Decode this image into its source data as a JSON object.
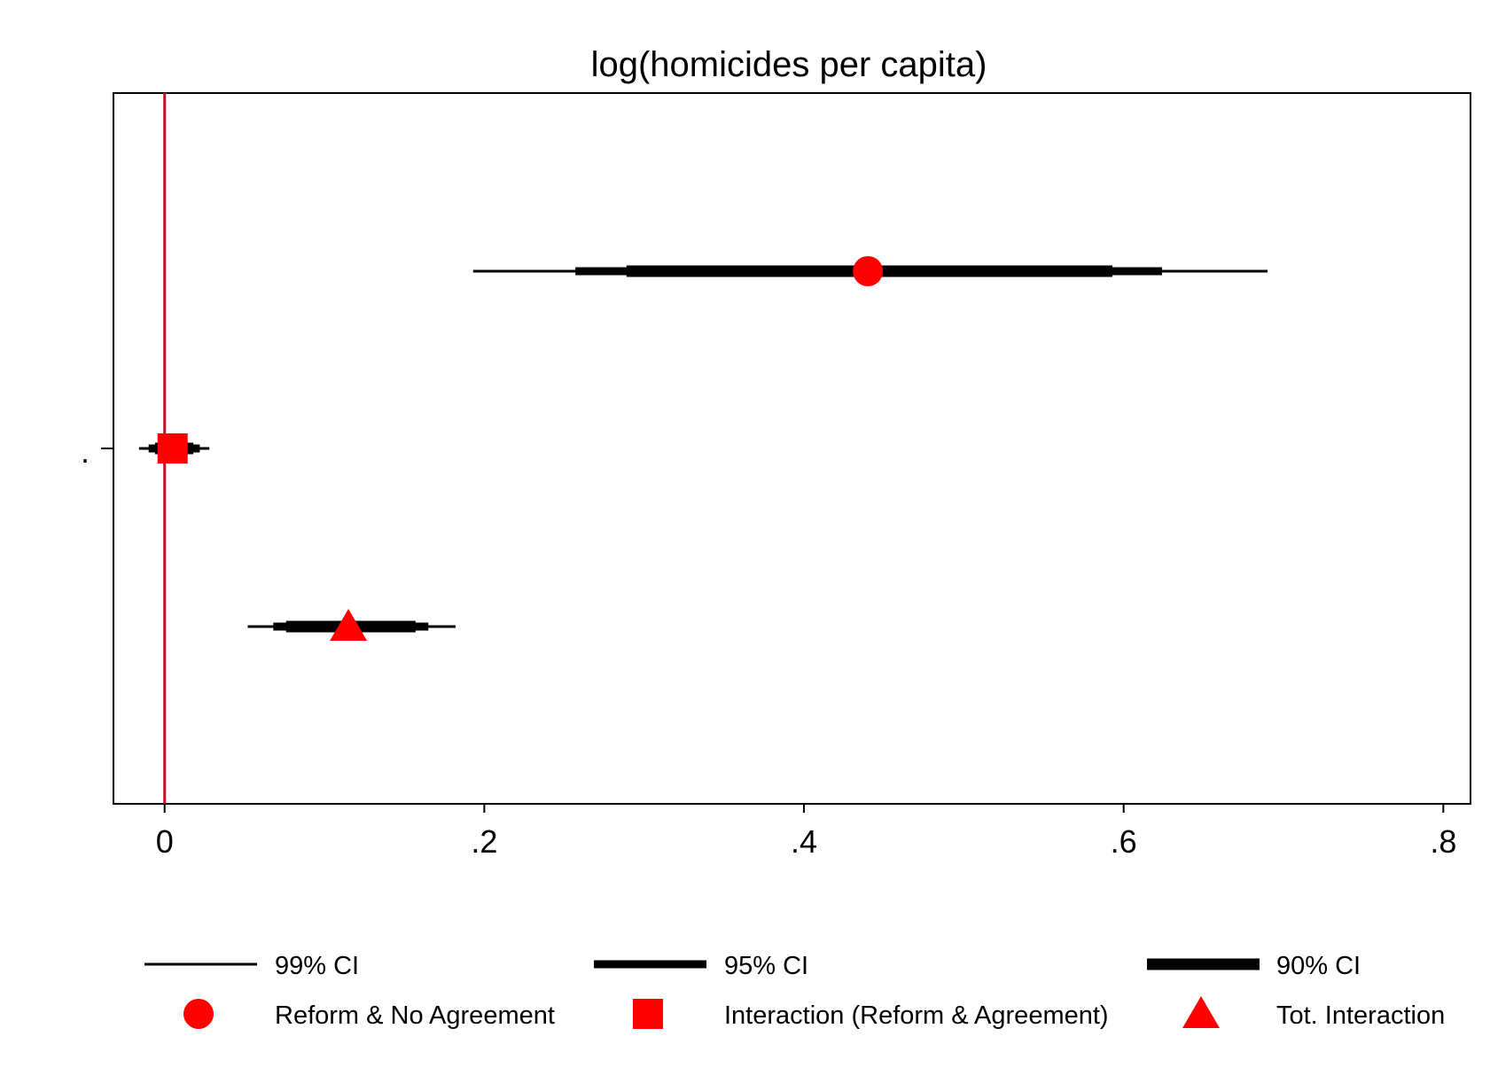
{
  "chart_data": {
    "type": "coefficient-plot",
    "title": "log(homicides per capita)",
    "xlabel": "",
    "ylabel": "",
    "xlim": [
      -0.032,
      0.817
    ],
    "x_ticks": [
      0,
      0.2,
      0.4,
      0.6,
      0.8
    ],
    "x_tick_labels": [
      "0",
      ".2",
      ".4",
      ".6",
      ".8"
    ],
    "y_tick_labels": [
      "."
    ],
    "reference_line": {
      "x": 0,
      "color": "#c8102e"
    },
    "marker_color": "#ff0000",
    "grid": false,
    "legend_position": "bottom",
    "series": [
      {
        "name": "Reform & No Agreement",
        "marker": "circle",
        "estimate": 0.44,
        "ci99": [
          0.193,
          0.69
        ],
        "ci95": [
          0.257,
          0.624
        ],
        "ci90": [
          0.289,
          0.593
        ]
      },
      {
        "name": "Interaction (Reform & Agreement)",
        "marker": "square",
        "estimate": 0.005,
        "ci99": [
          -0.016,
          0.028
        ],
        "ci95": [
          -0.01,
          0.022
        ],
        "ci90": [
          -0.006,
          0.018
        ]
      },
      {
        "name": "Tot. Interaction",
        "marker": "triangle",
        "estimate": 0.115,
        "ci99": [
          0.052,
          0.182
        ],
        "ci95": [
          0.068,
          0.165
        ],
        "ci90": [
          0.076,
          0.157
        ]
      }
    ],
    "legend": {
      "ci_entries": [
        {
          "label": "99% CI"
        },
        {
          "label": "95% CI"
        },
        {
          "label": "90% CI"
        }
      ],
      "marker_entries": [
        {
          "label": "Reform & No Agreement",
          "marker": "circle"
        },
        {
          "label": "Interaction (Reform & Agreement)",
          "marker": "square"
        },
        {
          "label": "Tot. Interaction",
          "marker": "triangle"
        }
      ]
    }
  }
}
